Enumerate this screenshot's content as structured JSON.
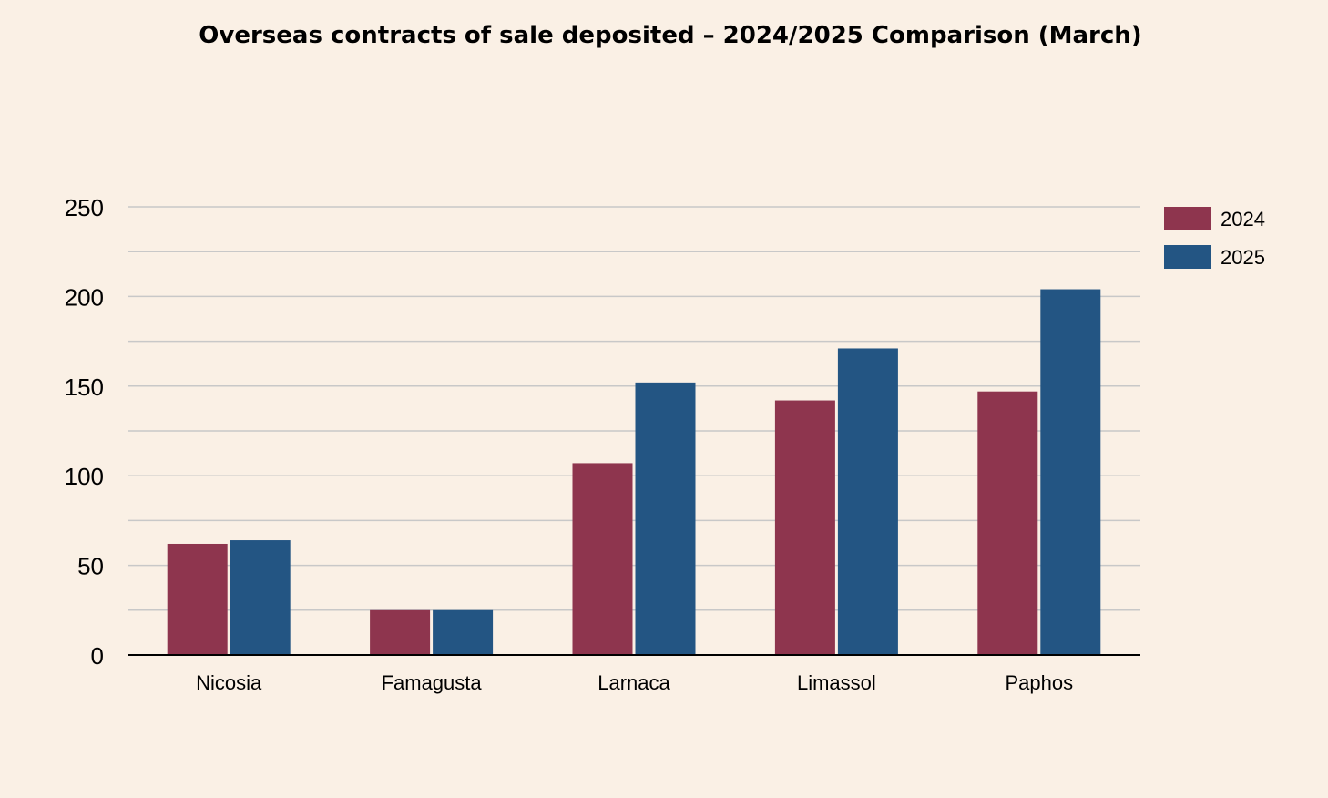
{
  "colors": {
    "background": "#FAF0E5",
    "grid": "#C8C8C8",
    "axis": "#000000"
  },
  "chart_data": {
    "type": "bar",
    "title": "Overseas contracts of sale deposited – 2024/2025 Comparison (March)",
    "xlabel": "",
    "ylabel": "",
    "categories": [
      "Nicosia",
      "Famagusta",
      "Larnaca",
      "Limassol",
      "Paphos"
    ],
    "series": [
      {
        "name": "2024",
        "color": "#8E354E",
        "values": [
          62,
          25,
          107,
          142,
          147
        ]
      },
      {
        "name": "2025",
        "color": "#235583",
        "values": [
          64,
          25,
          152,
          171,
          204
        ]
      }
    ],
    "ylim": [
      0,
      250
    ],
    "yticks": [
      0,
      50,
      100,
      150,
      200,
      250
    ],
    "minor_grid_step": 25,
    "grid": true,
    "legend_position": "top-right"
  }
}
